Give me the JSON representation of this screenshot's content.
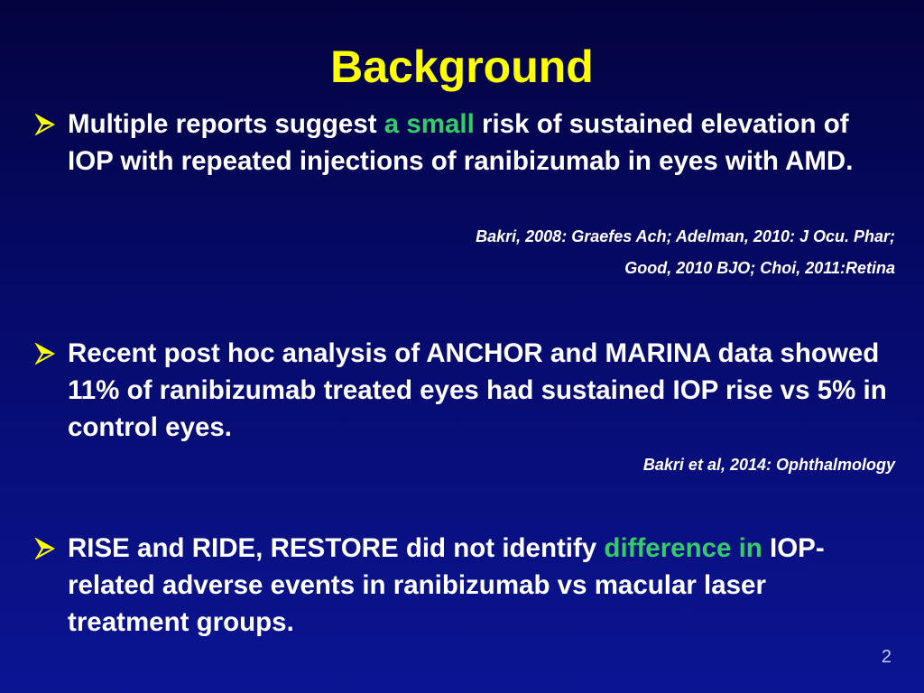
{
  "slide": {
    "title": "Background",
    "number": "2",
    "bullets": [
      {
        "text_before": "Multiple reports suggest ",
        "highlight": "a small",
        "text_after": " risk of sustained elevation of IOP with repeated injections of ranibizumab in eyes with AMD.",
        "citations": [
          "Bakri, 2008: Graefes Ach; Adelman, 2010: J Ocu. Phar;",
          "Good, 2010 BJO; Choi, 2011:Retina"
        ]
      },
      {
        "text": "Recent post hoc analysis of ANCHOR and MARINA data showed 11% of ranibizumab treated eyes had sustained IOP rise vs 5% in control eyes.",
        "citations": [
          "Bakri et al, 2014: Ophthalmology"
        ]
      },
      {
        "text_before": "RISE and RIDE, RESTORE did not identify ",
        "highlight": "difference in",
        "text_after": " IOP-related adverse events in ranibizumab vs macular laser treatment groups."
      }
    ],
    "bullet_icon": "arrow-bullet-icon",
    "colors": {
      "title": "#ffff00",
      "highlight": "#33cc66",
      "text": "#ffffff",
      "background_top": "#03033f",
      "background_bottom": "#0b1593"
    }
  }
}
